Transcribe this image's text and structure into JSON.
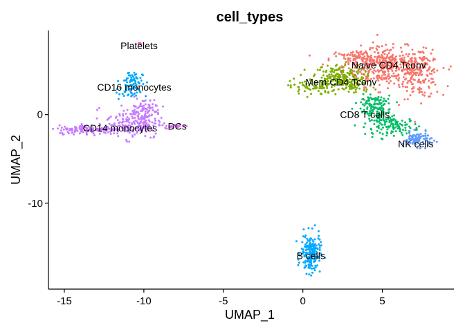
{
  "chart_data": {
    "type": "scatter",
    "title": "cell_types",
    "xlabel": "UMAP_1",
    "ylabel": "UMAP_2",
    "xlim": [
      -16,
      9.5
    ],
    "ylim": [
      -19.7,
      9.5
    ],
    "x_ticks": [
      -15,
      -10,
      -5,
      0,
      5
    ],
    "y_ticks": [
      0,
      -10
    ],
    "grid": false,
    "legend": "none",
    "series": [
      {
        "name": "Naive CD4 Tconv",
        "color": "#F8766D",
        "label_pos": [
          5.4,
          5.6
        ],
        "clusters": [
          {
            "cx": 5.3,
            "cy": 5.4,
            "sx": 1.4,
            "sy": 1.1,
            "n": 420
          },
          {
            "cx": 7.4,
            "cy": 4.4,
            "sx": 0.6,
            "sy": 1.3,
            "n": 130
          },
          {
            "cx": 3.5,
            "cy": 6.3,
            "sx": 0.9,
            "sy": 0.5,
            "n": 80
          }
        ]
      },
      {
        "name": "Mem CD4 Tconv",
        "color": "#7CAE00",
        "label_pos": [
          2.4,
          3.7
        ],
        "clusters": [
          {
            "cx": 2.2,
            "cy": 4.3,
            "sx": 0.8,
            "sy": 0.7,
            "n": 160
          },
          {
            "cx": 0.6,
            "cy": 3.1,
            "sx": 0.7,
            "sy": 0.5,
            "n": 70
          },
          {
            "cx": 3.2,
            "cy": 3.3,
            "sx": 0.6,
            "sy": 0.5,
            "n": 60
          }
        ]
      },
      {
        "name": "CD8 T cells",
        "color": "#00BE67",
        "label_pos": [
          3.9,
          0.0
        ],
        "clusters": [
          {
            "cx": 4.6,
            "cy": 0.3,
            "sx": 0.5,
            "sy": 0.9,
            "n": 120
          },
          {
            "cx": 5.9,
            "cy": -1.3,
            "sx": 0.7,
            "sy": 0.5,
            "n": 100
          },
          {
            "cx": 4.3,
            "cy": 1.4,
            "sx": 0.4,
            "sy": 0.4,
            "n": 40
          }
        ]
      },
      {
        "name": "NK cells",
        "color": "#619CFF",
        "label_pos": [
          7.1,
          -3.3
        ],
        "clusters": [
          {
            "cx": 7.2,
            "cy": -2.8,
            "sx": 0.45,
            "sy": 0.4,
            "n": 90
          }
        ]
      },
      {
        "name": "B cells",
        "color": "#00A9FF",
        "label_pos": [
          0.5,
          -15.9
        ],
        "clusters": [
          {
            "cx": 0.5,
            "cy": -15.7,
            "sx": 0.3,
            "sy": 1.1,
            "n": 180
          }
        ]
      },
      {
        "name": "CD16 monocytes",
        "color": "#00A9FF",
        "label_pos": [
          -10.6,
          3.1
        ],
        "clusters": [
          {
            "cx": -10.8,
            "cy": 3.8,
            "sx": 0.35,
            "sy": 0.6,
            "n": 60
          },
          {
            "cx": -11.0,
            "cy": 2.5,
            "sx": 0.4,
            "sy": 0.4,
            "n": 30
          }
        ]
      },
      {
        "name": "CD14 monocytes",
        "color": "#C77CFF",
        "label_pos": [
          -11.5,
          -1.5
        ],
        "clusters": [
          {
            "cx": -10.6,
            "cy": -0.9,
            "sx": 0.9,
            "sy": 0.9,
            "n": 200
          },
          {
            "cx": -13.4,
            "cy": -1.7,
            "sx": 1.0,
            "sy": 0.25,
            "n": 140
          },
          {
            "cx": -9.9,
            "cy": 0.7,
            "sx": 0.5,
            "sy": 0.6,
            "n": 60
          }
        ]
      },
      {
        "name": "DCs",
        "color": "#E76BF3",
        "label_pos": [
          -7.9,
          -1.3
        ],
        "clusters": [
          {
            "cx": -8.1,
            "cy": -1.3,
            "sx": 0.3,
            "sy": 0.12,
            "n": 18
          }
        ]
      },
      {
        "name": "Platelets",
        "color": "#FF61C3",
        "label_pos": [
          -10.3,
          7.8
        ],
        "clusters": [
          {
            "cx": -10.2,
            "cy": 8.0,
            "sx": 0.05,
            "sy": 0.05,
            "n": 3
          }
        ]
      }
    ]
  }
}
